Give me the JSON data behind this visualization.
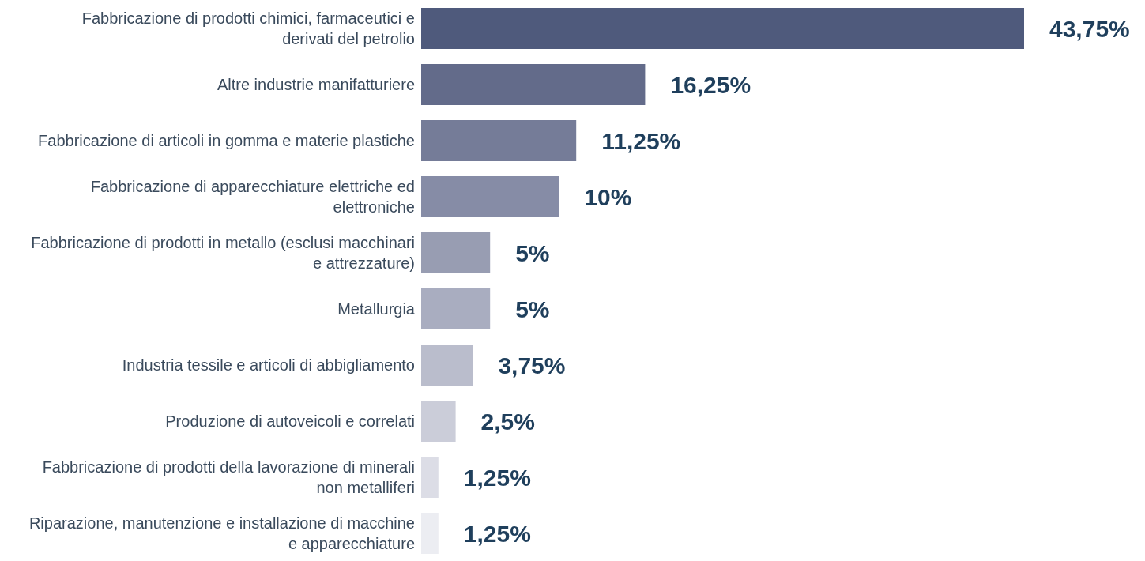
{
  "chart_data": {
    "type": "bar",
    "orientation": "horizontal",
    "categories": [
      "Fabbricazione di prodotti chimici, farmaceutici e derivati del petrolio",
      "Altre industrie manifatturiere",
      "Fabbricazione di articoli in gomma e materie plastiche",
      "Fabbricazione di apparecchiature elettriche ed elettroniche",
      "Fabbricazione di prodotti in metallo (esclusi macchinari e attrezzature)",
      "Metallurgia",
      "Industria tessile e articoli di abbigliamento",
      "Produzione di autoveicoli e correlati",
      "Fabbricazione di prodotti della lavorazione di minerali non metalliferi",
      "Riparazione, manutenzione e installazione di macchine e apparecchiature"
    ],
    "values": [
      43.75,
      16.25,
      11.25,
      10,
      5,
      5,
      3.75,
      2.5,
      1.25,
      1.25
    ],
    "value_labels": [
      "43,75%",
      "16,25%",
      "11,25%",
      "10%",
      "5%",
      "5%",
      "3,75%",
      "2,5%",
      "1,25%",
      "1,25%"
    ],
    "colors": [
      "#4f5a7c",
      "#636b8a",
      "#757c98",
      "#868ca6",
      "#989db2",
      "#a9adc0",
      "#babdcc",
      "#cbcdd9",
      "#dcdde6",
      "#ecedf2"
    ]
  }
}
